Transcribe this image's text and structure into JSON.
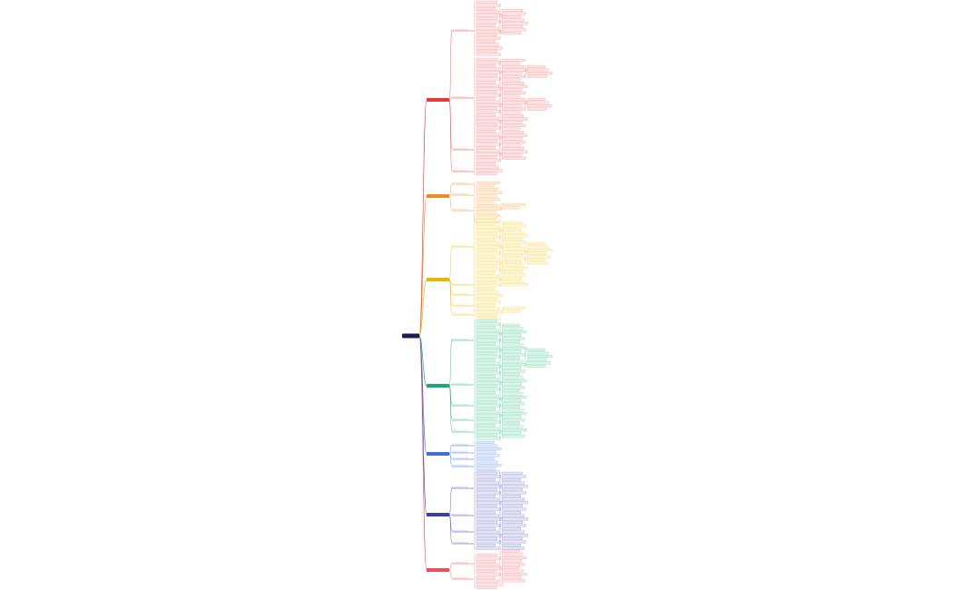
{
  "branches": [
    {
      "color": "#e53935",
      "fill": "#fde4e4"
    },
    {
      "color": "#ef8a2a",
      "fill": "#fdebd6"
    },
    {
      "color": "#e6b800",
      "fill": "#fdf6d2"
    },
    {
      "color": "#1aa86b",
      "fill": "#d8f5e7"
    },
    {
      "color": "#3f6fd8",
      "fill": "#e0e8fb"
    },
    {
      "color": "#3a3fa8",
      "fill": "#e3e3f6"
    },
    {
      "color": "#e8505b",
      "fill": "#fde2e4"
    }
  ]
}
